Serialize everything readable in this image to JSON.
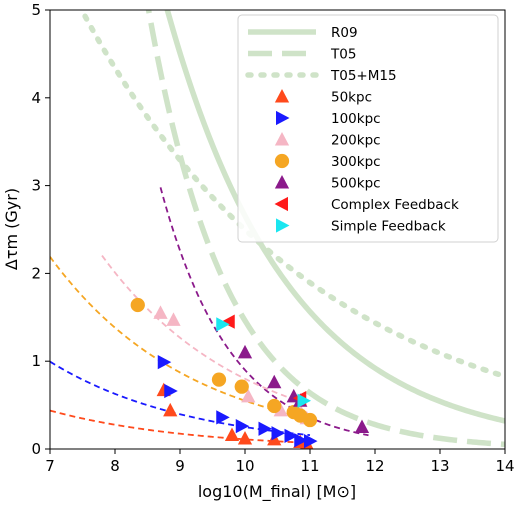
{
  "chart_data": {
    "type": "scatter",
    "xlabel": "log10(M_final) [M⊙]",
    "ylabel": "Δτm (Gyr)",
    "xlim": [
      7,
      14
    ],
    "ylim": [
      0,
      5
    ],
    "xticks": [
      7,
      8,
      9,
      10,
      11,
      12,
      13,
      14
    ],
    "yticks": [
      0,
      1,
      2,
      3,
      4,
      5
    ],
    "grid": false,
    "legend_position": "top-right",
    "reference_curves": [
      {
        "name": "R09",
        "style": "solid",
        "color": "#cfe3c8",
        "amp": 1.2,
        "x0": 11.5,
        "k": 0.23
      },
      {
        "name": "T05",
        "style": "dashed",
        "color": "#cfe3c8",
        "amp": 0.2,
        "x0": 12.4,
        "k": 0.36
      },
      {
        "name": "T05+M15",
        "style": "dotted",
        "color": "#cfe3c8",
        "amp": 1.65,
        "x0": 11.5,
        "k": 0.12
      }
    ],
    "fits": [
      {
        "color": "#8b1a8b",
        "amp": 0.9,
        "x0": 10.0,
        "k": 0.4,
        "xmin": 8.7,
        "xmax": 11.9
      },
      {
        "color": "#f5b6c4",
        "amp": 0.8,
        "x0": 10.0,
        "k": 0.2,
        "xmin": 7.8,
        "xmax": 10.9
      },
      {
        "color": "#f5a623",
        "amp": 0.55,
        "x0": 10.0,
        "k": 0.2,
        "xmin": 7.0,
        "xmax": 10.9
      },
      {
        "color": "#1a1aff",
        "amp": 0.25,
        "x0": 10.0,
        "k": 0.2,
        "xmin": 7.0,
        "xmax": 11.0
      },
      {
        "color": "#ff4a1c",
        "amp": 0.11,
        "x0": 10.0,
        "k": 0.2,
        "xmin": 7.0,
        "xmax": 10.8
      }
    ],
    "series": [
      {
        "name": "50kpc",
        "marker": "triangle-up",
        "color": "#ff4a1c",
        "points": [
          [
            8.75,
            0.67
          ],
          [
            8.85,
            0.44
          ],
          [
            9.8,
            0.16
          ],
          [
            10.0,
            0.12
          ],
          [
            10.45,
            0.11
          ],
          [
            10.85,
            0.08
          ],
          [
            10.95,
            0.06
          ]
        ]
      },
      {
        "name": "100kpc",
        "marker": "triangle-right",
        "color": "#1a1aff",
        "points": [
          [
            8.75,
            0.99
          ],
          [
            8.85,
            0.66
          ],
          [
            9.65,
            0.36
          ],
          [
            9.95,
            0.26
          ],
          [
            10.3,
            0.23
          ],
          [
            10.5,
            0.18
          ],
          [
            10.7,
            0.15
          ],
          [
            10.85,
            0.1
          ],
          [
            11.0,
            0.09
          ]
        ]
      },
      {
        "name": "200kpc",
        "marker": "triangle-up",
        "color": "#f5b6c4",
        "points": [
          [
            8.7,
            1.55
          ],
          [
            8.9,
            1.47
          ],
          [
            10.05,
            0.6
          ],
          [
            10.55,
            0.44
          ],
          [
            10.85,
            0.43
          ],
          [
            10.95,
            0.35
          ]
        ]
      },
      {
        "name": "300kpc",
        "marker": "circle",
        "color": "#f5a623",
        "points": [
          [
            8.35,
            1.64
          ],
          [
            9.6,
            0.79
          ],
          [
            9.95,
            0.71
          ],
          [
            10.45,
            0.49
          ],
          [
            10.75,
            0.42
          ],
          [
            10.85,
            0.38
          ],
          [
            11.0,
            0.33
          ]
        ]
      },
      {
        "name": "500kpc",
        "marker": "triangle-up",
        "color": "#8b1a8b",
        "points": [
          [
            10.0,
            1.1
          ],
          [
            10.45,
            0.76
          ],
          [
            10.75,
            0.6
          ],
          [
            10.85,
            0.55
          ],
          [
            11.8,
            0.25
          ]
        ]
      },
      {
        "name": "Complex Feedback",
        "marker": "triangle-left",
        "color": "#ff1a1a",
        "points": [
          [
            9.75,
            1.45
          ],
          [
            10.85,
            0.58
          ]
        ]
      },
      {
        "name": "Simple Feedback",
        "marker": "triangle-right",
        "color": "#1ae6f0",
        "points": [
          [
            9.65,
            1.42
          ],
          [
            10.9,
            0.55
          ]
        ]
      }
    ]
  }
}
